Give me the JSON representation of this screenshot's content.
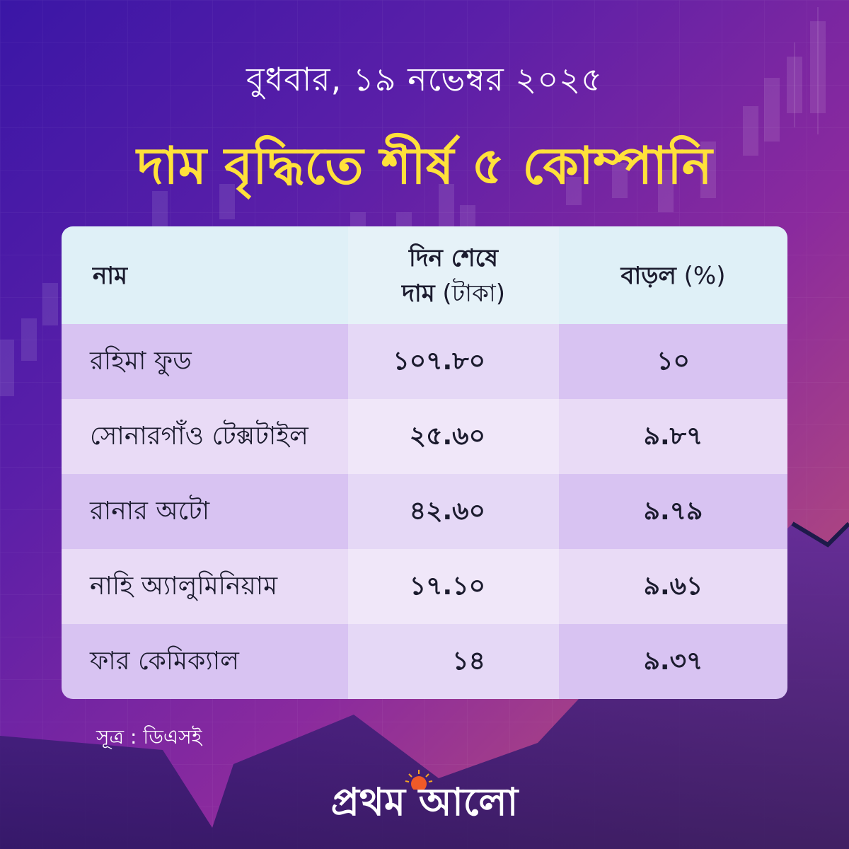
{
  "date": "বুধবার, ১৯ নভেম্বর ২০২৫",
  "title": "দাম বৃদ্ধিতে শীর্ষ ৫ কোম্পানি",
  "colors": {
    "title": "#ffe13a",
    "header_bg": "#dff0f7",
    "row_odd": "#d8c3f2",
    "row_even": "#e9dbf6",
    "price_col_tint": "#efe6fa"
  },
  "table": {
    "headers": {
      "name": "নাম",
      "price_line1": "দিন শেষে",
      "price_line2_bold": "দাম",
      "price_line2_unit": "(টাকা)",
      "change_bold": "বাড়ল",
      "change_unit": "(%)"
    },
    "rows": [
      {
        "name": "রহিমা ফুড",
        "price": "১০৭.৮০",
        "change": "১০"
      },
      {
        "name": "সোনারগাঁও টেক্সটাইল",
        "price": "২৫.৬০",
        "change": "৯.৮৭"
      },
      {
        "name": "রানার অটো",
        "price": "৪২.৬০",
        "change": "৯.৭৯"
      },
      {
        "name": "নাহি অ্যালুমিনিয়াম",
        "price": "১৭.১০",
        "change": "৯.৬১"
      },
      {
        "name": "ফার কেমিক্যাল",
        "price": "১৪",
        "change": "৯.৩৭"
      }
    ]
  },
  "chart_data": {
    "type": "table",
    "title": "দাম বৃদ্ধিতে শীর্ষ ৫ কোম্পানি",
    "subtitle": "বুধবার, ১৯ নভেম্বর ২০২৫",
    "columns": [
      "নাম",
      "দিন শেষে দাম (টাকা)",
      "বাড়ল (%)"
    ],
    "categories": [
      "রহিমা ফুড",
      "সোনারগাঁও টেক্সটাইল",
      "রানার অটো",
      "নাহি অ্যালুমিনিয়াম",
      "ফার কেমিক্যাল"
    ],
    "series": [
      {
        "name": "দিন শেষে দাম (টাকা)",
        "values": [
          107.8,
          25.6,
          42.6,
          17.1,
          14
        ]
      },
      {
        "name": "বাড়ল (%)",
        "values": [
          10,
          9.87,
          9.79,
          9.61,
          9.37
        ]
      }
    ]
  },
  "source": "সূত্র : ডিএসই",
  "logo": "প্রথম আলো"
}
